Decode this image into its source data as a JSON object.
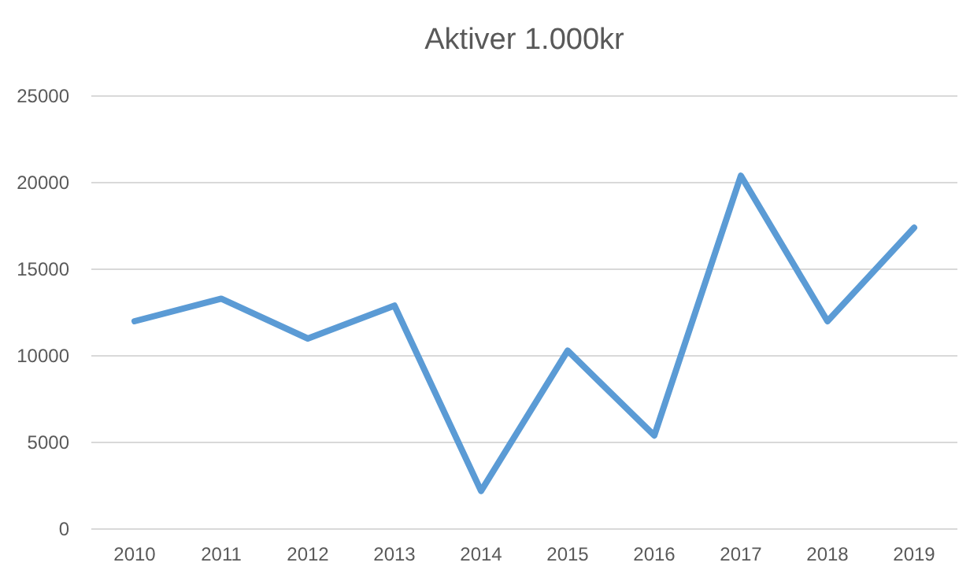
{
  "chart_data": {
    "type": "line",
    "title": "Aktiver 1.000kr",
    "categories": [
      "2010",
      "2011",
      "2012",
      "2013",
      "2014",
      "2015",
      "2016",
      "2017",
      "2018",
      "2019"
    ],
    "series": [
      {
        "color": "#5b9bd5",
        "values": [
          12000,
          13300,
          11000,
          12900,
          2200,
          10300,
          5400,
          20400,
          12000,
          17400
        ]
      }
    ],
    "ylim": [
      0,
      25000
    ],
    "yticks": [
      0,
      5000,
      10000,
      15000,
      20000,
      25000
    ],
    "grid": "y",
    "marker": "none",
    "line_style": "solid"
  }
}
